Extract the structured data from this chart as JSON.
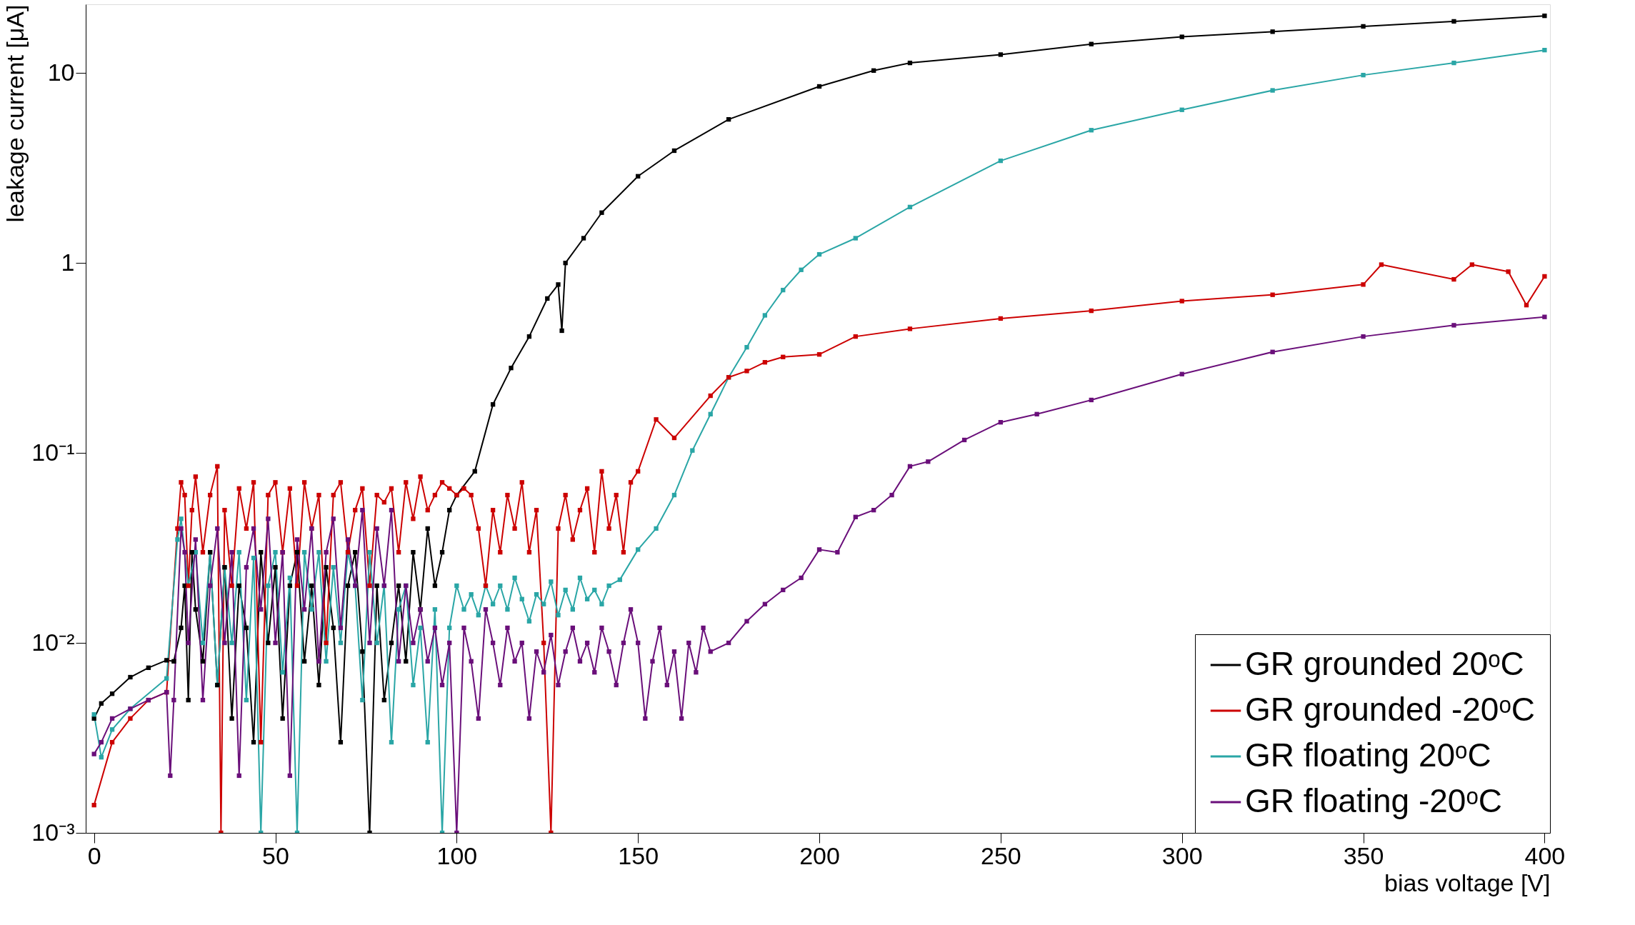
{
  "chart_data": {
    "type": "line",
    "xlabel": "bias voltage [V]",
    "ylabel": "leakage current [μA]",
    "log": "y",
    "grid": false,
    "legend": "bottom right",
    "marker": "square",
    "line_style": "solid",
    "xlim": [
      -2.3,
      401.5
    ],
    "ylim": [
      0.001,
      23
    ],
    "xticks": [
      0,
      50,
      100,
      150,
      200,
      250,
      300,
      350,
      400
    ],
    "yticks": [
      {
        "value": 0.001,
        "label": "10⁻³"
      },
      {
        "value": 0.01,
        "label": "10⁻²"
      },
      {
        "value": 0.1,
        "label": "10⁻¹"
      },
      1,
      10
    ],
    "series": [
      {
        "name": "GR grounded 20ᵒC",
        "color": "#000000",
        "x": [
          0,
          2,
          5,
          10,
          15,
          20,
          22,
          24,
          25,
          26,
          27,
          28,
          30,
          32,
          34,
          36,
          38,
          40,
          42,
          44,
          46,
          48,
          50,
          52,
          54,
          56,
          58,
          60,
          62,
          64,
          66,
          68,
          70,
          72,
          74,
          76,
          78,
          80,
          82,
          84,
          86,
          88,
          90,
          92,
          94,
          96,
          98,
          100,
          105,
          110,
          115,
          120,
          125,
          128,
          129,
          130,
          135,
          140,
          150,
          160,
          175,
          200,
          215,
          225,
          250,
          275,
          300,
          325,
          350,
          375,
          400
        ],
        "values": [
          0.004,
          0.0048,
          0.0054,
          0.0066,
          0.0074,
          0.0081,
          0.008,
          0.012,
          0.02,
          0.005,
          0.03,
          0.015,
          0.008,
          0.03,
          0.006,
          0.025,
          0.004,
          0.02,
          0.012,
          0.003,
          0.03,
          0.01,
          0.025,
          0.004,
          0.02,
          0.03,
          0.008,
          0.02,
          0.006,
          0.025,
          0.012,
          0.003,
          0.02,
          0.03,
          0.009,
          0.001,
          0.02,
          0.005,
          0.01,
          0.02,
          0.008,
          0.03,
          0.015,
          0.04,
          0.02,
          0.03,
          0.05,
          0.06,
          0.08,
          0.18,
          0.28,
          0.41,
          0.65,
          0.77,
          0.44,
          1.0,
          1.35,
          1.84,
          2.86,
          3.9,
          5.7,
          8.5,
          10.3,
          11.3,
          12.5,
          14.2,
          15.5,
          16.5,
          17.6,
          18.7,
          20
        ]
      },
      {
        "name": "GR grounded -20ᵒC",
        "color": "#cc0000",
        "x": [
          0,
          5,
          10,
          15,
          20,
          23,
          24,
          25,
          26,
          27,
          28,
          30,
          32,
          34,
          35,
          36,
          38,
          40,
          42,
          44,
          46,
          48,
          50,
          52,
          54,
          56,
          58,
          60,
          62,
          64,
          66,
          68,
          70,
          72,
          74,
          76,
          78,
          80,
          82,
          84,
          86,
          88,
          90,
          92,
          94,
          96,
          98,
          100,
          102,
          104,
          106,
          108,
          110,
          112,
          114,
          116,
          118,
          120,
          122,
          124,
          126,
          128,
          130,
          132,
          134,
          136,
          138,
          140,
          142,
          144,
          146,
          148,
          150,
          155,
          160,
          170,
          175,
          180,
          185,
          190,
          200,
          210,
          225,
          250,
          275,
          300,
          325,
          350,
          355,
          375,
          380,
          390,
          395,
          400
        ],
        "values": [
          0.0014,
          0.003,
          0.004,
          0.005,
          0.0055,
          0.04,
          0.07,
          0.06,
          0.02,
          0.05,
          0.075,
          0.03,
          0.06,
          0.085,
          0.001,
          0.05,
          0.02,
          0.065,
          0.04,
          0.07,
          0.003,
          0.06,
          0.07,
          0.03,
          0.065,
          0.02,
          0.07,
          0.04,
          0.06,
          0.01,
          0.06,
          0.07,
          0.03,
          0.05,
          0.065,
          0.02,
          0.06,
          0.055,
          0.065,
          0.03,
          0.07,
          0.045,
          0.075,
          0.05,
          0.06,
          0.07,
          0.065,
          0.06,
          0.065,
          0.06,
          0.04,
          0.02,
          0.05,
          0.03,
          0.06,
          0.04,
          0.07,
          0.03,
          0.05,
          0.01,
          0.001,
          0.04,
          0.06,
          0.035,
          0.05,
          0.065,
          0.03,
          0.08,
          0.04,
          0.06,
          0.03,
          0.07,
          0.08,
          0.15,
          0.12,
          0.2,
          0.25,
          0.27,
          0.3,
          0.32,
          0.33,
          0.41,
          0.45,
          0.51,
          0.56,
          0.63,
          0.68,
          0.77,
          0.98,
          0.82,
          0.98,
          0.9,
          0.6,
          0.85
        ]
      },
      {
        "name": "GR floating 20ᵒC",
        "color": "#2aa6a6",
        "x": [
          0,
          2,
          5,
          10,
          20,
          23,
          24,
          26,
          28,
          30,
          32,
          34,
          36,
          38,
          40,
          42,
          44,
          46,
          48,
          50,
          52,
          54,
          56,
          58,
          60,
          62,
          64,
          66,
          68,
          70,
          72,
          74,
          76,
          78,
          80,
          82,
          84,
          86,
          88,
          90,
          92,
          94,
          96,
          98,
          100,
          102,
          104,
          106,
          108,
          110,
          112,
          114,
          116,
          118,
          120,
          122,
          124,
          126,
          128,
          130,
          132,
          134,
          136,
          138,
          140,
          142,
          145,
          150,
          155,
          160,
          165,
          170,
          175,
          180,
          185,
          190,
          195,
          200,
          210,
          225,
          250,
          275,
          300,
          325,
          350,
          375,
          400
        ],
        "values": [
          0.0042,
          0.0025,
          0.0035,
          0.0045,
          0.0065,
          0.035,
          0.045,
          0.02,
          0.03,
          0.01,
          0.03,
          0.006,
          0.025,
          0.01,
          0.03,
          0.005,
          0.028,
          0.001,
          0.02,
          0.03,
          0.007,
          0.022,
          0.001,
          0.03,
          0.015,
          0.03,
          0.008,
          0.025,
          0.01,
          0.03,
          0.02,
          0.005,
          0.03,
          0.01,
          0.02,
          0.003,
          0.015,
          0.02,
          0.006,
          0.012,
          0.003,
          0.015,
          0.001,
          0.012,
          0.02,
          0.015,
          0.018,
          0.014,
          0.02,
          0.016,
          0.02,
          0.015,
          0.022,
          0.017,
          0.013,
          0.018,
          0.016,
          0.021,
          0.014,
          0.019,
          0.015,
          0.022,
          0.017,
          0.019,
          0.016,
          0.02,
          0.0215,
          0.031,
          0.04,
          0.06,
          0.103,
          0.16,
          0.25,
          0.36,
          0.53,
          0.72,
          0.92,
          1.11,
          1.35,
          1.97,
          3.45,
          5.0,
          6.4,
          8.1,
          9.75,
          11.3,
          13.2
        ]
      },
      {
        "name": "GR floating -20ᵒC",
        "color": "#6a0f7a",
        "x": [
          0,
          2,
          5,
          10,
          15,
          20,
          21,
          22,
          24,
          25,
          26,
          28,
          30,
          32,
          34,
          36,
          38,
          40,
          42,
          44,
          46,
          48,
          50,
          52,
          54,
          56,
          58,
          60,
          62,
          64,
          66,
          68,
          70,
          72,
          74,
          76,
          78,
          80,
          82,
          84,
          86,
          88,
          90,
          92,
          94,
          96,
          98,
          100,
          102,
          104,
          106,
          108,
          110,
          112,
          114,
          116,
          118,
          120,
          122,
          124,
          126,
          128,
          130,
          132,
          134,
          136,
          138,
          140,
          142,
          144,
          146,
          148,
          150,
          152,
          154,
          156,
          158,
          160,
          162,
          164,
          166,
          168,
          170,
          175,
          180,
          185,
          190,
          195,
          200,
          205,
          210,
          215,
          220,
          225,
          230,
          240,
          250,
          260,
          275,
          300,
          325,
          350,
          375,
          400
        ],
        "values": [
          0.0026,
          0.003,
          0.004,
          0.0045,
          0.005,
          0.0055,
          0.002,
          0.005,
          0.04,
          0.03,
          0.01,
          0.035,
          0.005,
          0.02,
          0.04,
          0.01,
          0.03,
          0.002,
          0.025,
          0.04,
          0.015,
          0.045,
          0.01,
          0.03,
          0.002,
          0.035,
          0.015,
          0.04,
          0.008,
          0.03,
          0.045,
          0.012,
          0.035,
          0.02,
          0.05,
          0.01,
          0.04,
          0.02,
          0.05,
          0.008,
          0.02,
          0.01,
          0.015,
          0.008,
          0.012,
          0.006,
          0.01,
          0.001,
          0.012,
          0.008,
          0.004,
          0.015,
          0.01,
          0.006,
          0.012,
          0.008,
          0.01,
          0.004,
          0.009,
          0.007,
          0.011,
          0.006,
          0.009,
          0.012,
          0.008,
          0.01,
          0.007,
          0.012,
          0.009,
          0.006,
          0.01,
          0.015,
          0.01,
          0.004,
          0.008,
          0.012,
          0.006,
          0.009,
          0.004,
          0.01,
          0.007,
          0.012,
          0.009,
          0.01,
          0.013,
          0.016,
          0.019,
          0.022,
          0.031,
          0.03,
          0.046,
          0.05,
          0.06,
          0.085,
          0.09,
          0.117,
          0.145,
          0.16,
          0.19,
          0.26,
          0.34,
          0.41,
          0.47,
          0.52
        ]
      }
    ]
  }
}
